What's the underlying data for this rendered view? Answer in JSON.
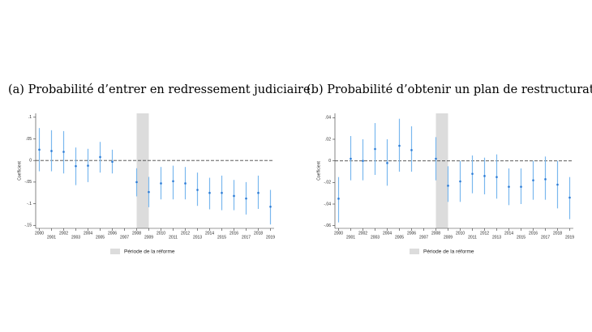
{
  "chart_data": [
    {
      "type": "errorbar",
      "title": "(a) Probabilité d’entrer en redressement judiciaire",
      "y_label": "Coefficient",
      "x": [
        2000,
        2001,
        2002,
        2003,
        2004,
        2005,
        2006,
        2007,
        2008,
        2009,
        2010,
        2011,
        2012,
        2013,
        2014,
        2015,
        2016,
        2017,
        2018,
        2019
      ],
      "xlim": [
        1999.7,
        2019.3
      ],
      "xticks": [
        2000,
        2001,
        2002,
        2003,
        2004,
        2005,
        2006,
        2007,
        2008,
        2009,
        2010,
        2011,
        2012,
        2013,
        2014,
        2015,
        2016,
        2017,
        2018,
        2019
      ],
      "ylim": [
        -0.157,
        0.109
      ],
      "yticks": [
        {
          "value": 0.1,
          "label": ".1"
        },
        {
          "value": 0.05,
          "label": ".05"
        },
        0,
        {
          "value": -0.05,
          "label": "-.05"
        },
        {
          "value": -0.1,
          "label": "-.1"
        },
        {
          "value": -0.15,
          "label": "-.15"
        }
      ],
      "reference_line": 0,
      "band": {
        "x": [
          2008,
          2009
        ],
        "label": "Période de la réforme",
        "color": "#dcdcdc"
      },
      "series": [
        {
          "color": "#2b7bd6",
          "bar_color": "#7ab8ee",
          "values": [
            0.025,
            0.022,
            0.02,
            -0.013,
            -0.012,
            0.008,
            -0.003,
            null,
            -0.05,
            -0.073,
            -0.053,
            -0.048,
            -0.053,
            -0.068,
            -0.075,
            -0.075,
            -0.082,
            -0.088,
            -0.075,
            -0.107
          ],
          "lower": [
            -0.025,
            -0.025,
            -0.03,
            -0.057,
            -0.05,
            -0.028,
            -0.03,
            null,
            -0.083,
            -0.108,
            -0.09,
            -0.09,
            -0.09,
            -0.105,
            -0.113,
            -0.115,
            -0.115,
            -0.125,
            -0.112,
            -0.148
          ],
          "upper": [
            0.075,
            0.07,
            0.068,
            0.03,
            0.027,
            0.043,
            0.025,
            null,
            -0.018,
            -0.038,
            -0.015,
            -0.012,
            -0.015,
            -0.028,
            -0.04,
            -0.035,
            -0.045,
            -0.05,
            -0.035,
            -0.068
          ]
        }
      ]
    },
    {
      "type": "errorbar",
      "title": "(b) Probabilité d’obtenir un plan de restructuration",
      "y_label": "Coefficient",
      "x": [
        2000,
        2001,
        2002,
        2003,
        2004,
        2005,
        2006,
        2007,
        2008,
        2009,
        2010,
        2011,
        2012,
        2013,
        2014,
        2015,
        2016,
        2017,
        2018,
        2019
      ],
      "xlim": [
        1999.7,
        2019.3
      ],
      "xticks": [
        2000,
        2001,
        2002,
        2003,
        2004,
        2005,
        2006,
        2007,
        2008,
        2009,
        2010,
        2011,
        2012,
        2013,
        2014,
        2015,
        2016,
        2017,
        2018,
        2019
      ],
      "ylim": [
        -0.0625,
        0.044
      ],
      "yticks": [
        {
          "value": 0.04,
          "label": ".04"
        },
        {
          "value": 0.02,
          "label": ".02"
        },
        0,
        {
          "value": -0.02,
          "label": "-.02"
        },
        {
          "value": -0.04,
          "label": "-.04"
        },
        {
          "value": -0.06,
          "label": "-.06"
        }
      ],
      "reference_line": 0,
      "band": {
        "x": [
          2008,
          2009
        ],
        "label": "Période de la réforme",
        "color": "#dcdcdc"
      },
      "series": [
        {
          "color": "#2b7bd6",
          "bar_color": "#7ab8ee",
          "values": [
            -0.035,
            0.002,
            0,
            0.011,
            -0.002,
            0.014,
            0.01,
            null,
            0.002,
            -0.023,
            -0.019,
            -0.012,
            -0.014,
            -0.015,
            -0.024,
            -0.024,
            -0.018,
            -0.017,
            -0.022,
            -0.034
          ],
          "lower": [
            -0.057,
            -0.018,
            -0.018,
            -0.013,
            -0.023,
            -0.01,
            -0.01,
            null,
            -0.018,
            -0.038,
            -0.038,
            -0.03,
            -0.031,
            -0.035,
            -0.041,
            -0.04,
            -0.036,
            -0.036,
            -0.044,
            -0.054
          ],
          "upper": [
            -0.015,
            0.023,
            0.02,
            0.035,
            0.02,
            0.039,
            0.032,
            null,
            0.022,
            -0.005,
            0,
            0.005,
            0.003,
            0.006,
            -0.007,
            -0.007,
            0,
            0.004,
            0,
            -0.015
          ]
        }
      ]
    }
  ]
}
